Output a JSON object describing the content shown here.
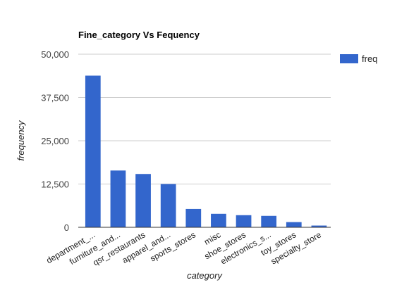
{
  "chart_data": {
    "type": "bar",
    "title": "Fine_category Vs Fequency",
    "xlabel": "category",
    "ylabel": "frequency",
    "categories": [
      "department_...",
      "furniture_and...",
      "qsr_restaurants",
      "apparel_and...",
      "sports_stores",
      "misc",
      "shoe_stores",
      "electronics_s...",
      "toy_stores",
      "specialty_store"
    ],
    "series": [
      {
        "name": "freq",
        "values": [
          43800,
          16400,
          15400,
          12500,
          5300,
          3900,
          3500,
          3300,
          1500,
          500
        ]
      }
    ],
    "ylim": [
      0,
      50000
    ],
    "yticks": [
      0,
      12500,
      25000,
      37500,
      50000
    ],
    "ytick_labels": [
      "0",
      "12,500",
      "25,000",
      "37,500",
      "50,000"
    ],
    "grid": true,
    "legend_position": "right",
    "colors": {
      "bar": "#3366cc",
      "grid": "#cccccc",
      "axis": "#333333"
    }
  }
}
